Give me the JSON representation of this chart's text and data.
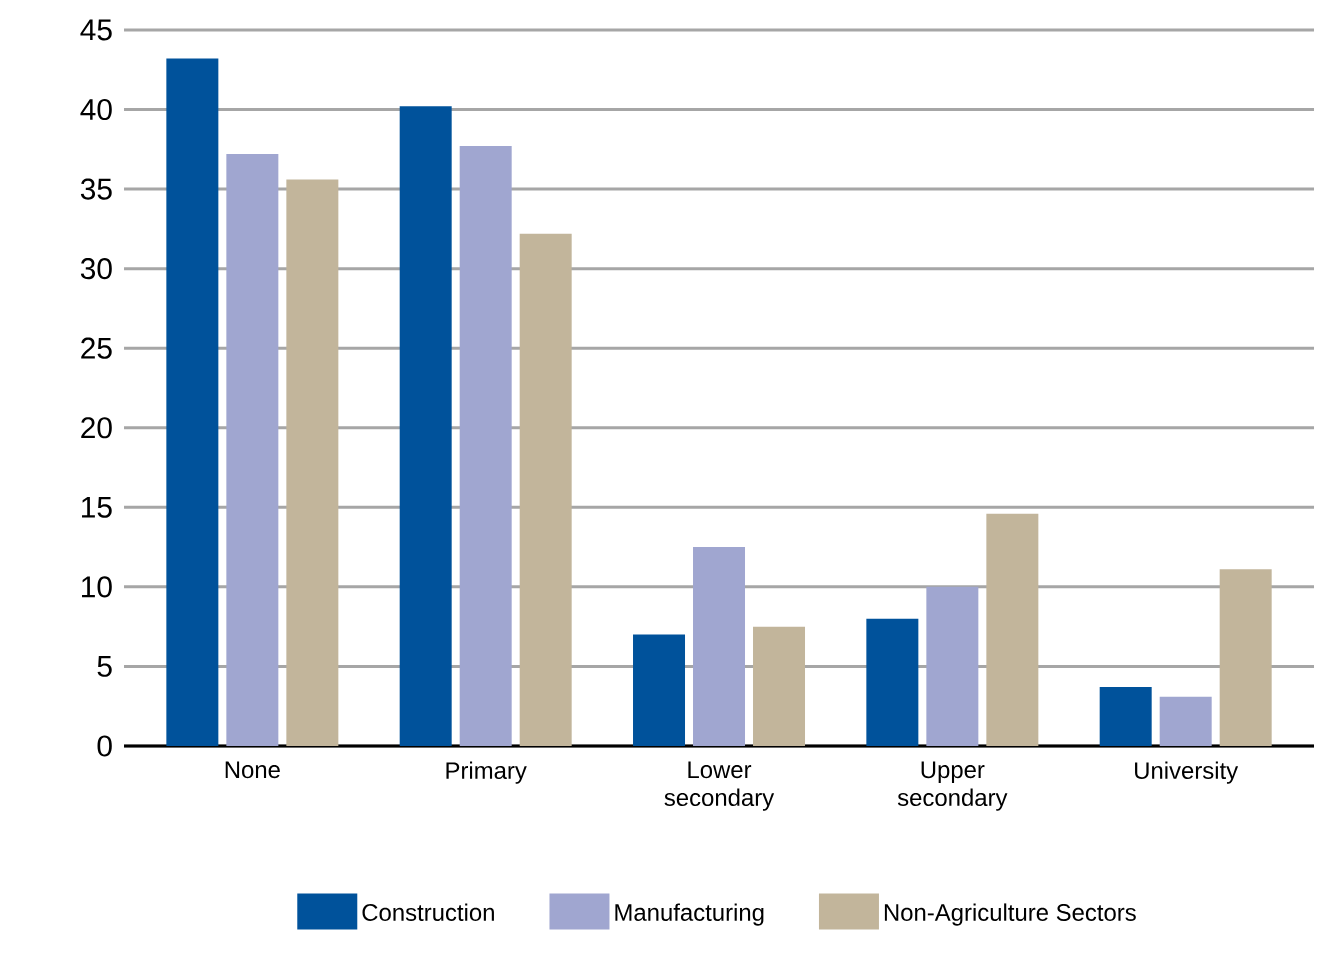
{
  "chart_data": {
    "type": "bar",
    "categories": [
      "None",
      "Primary",
      "Lower secondary",
      "Upper secondary",
      "University"
    ],
    "series": [
      {
        "name": "Construction",
        "color": "#00529b",
        "values": [
          43.2,
          40.2,
          7.0,
          8.0,
          3.7
        ]
      },
      {
        "name": "Manufacturing",
        "color": "#a0a6d0",
        "values": [
          37.2,
          37.7,
          12.5,
          10.0,
          3.1
        ]
      },
      {
        "name": "Non-Agriculture Sectors",
        "color": "#c2b59b",
        "values": [
          35.6,
          32.2,
          7.5,
          14.6,
          11.1
        ]
      }
    ],
    "ylim": [
      0,
      45
    ],
    "yticks": [
      0,
      5,
      10,
      15,
      20,
      25,
      30,
      35,
      40,
      45
    ],
    "grid": "y",
    "legend": "bottom"
  }
}
